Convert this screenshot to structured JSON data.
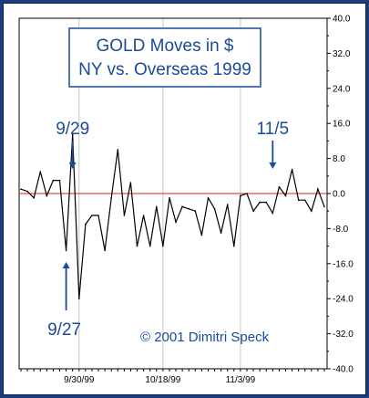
{
  "colors": {
    "frame": "#1c3d7a",
    "series": "#000000",
    "zero_line": "#e21b1b",
    "grid": "#c8c8c8",
    "annotation": "#1a4a9a"
  },
  "chart_data": {
    "type": "line",
    "title_lines": [
      "GOLD Moves in $",
      "NY vs. Overseas 1999"
    ],
    "xlabel": "",
    "ylabel": "",
    "ylim": [
      -40,
      40
    ],
    "y_ticks": [
      40,
      32,
      24,
      16,
      8,
      0,
      -8,
      -16,
      -24,
      -32,
      -40
    ],
    "y_tick_labels": [
      "40.0",
      "32.0",
      "24.0",
      "16.0",
      "8.0",
      "0.0",
      "-8.0",
      "-16.0",
      "-24.0",
      "-32.0",
      "-40.0"
    ],
    "grid": "vertical",
    "x_tick_labels": [
      {
        "label": "9/30/99",
        "index": 9
      },
      {
        "label": "10/18/99",
        "index": 22
      },
      {
        "label": "11/3/99",
        "index": 34
      }
    ],
    "series": [
      {
        "values": [
          1,
          0.5,
          -1,
          5,
          -0.5,
          3,
          3,
          -13,
          13.5,
          -24,
          -7,
          -5,
          -5,
          -13,
          -1,
          10,
          -5,
          2.5,
          -12,
          -5,
          -12,
          -3,
          -12,
          -1,
          -6.5,
          -3,
          -3.5,
          -4,
          -9.5,
          -1,
          -3.5,
          -9,
          -2.5,
          -12,
          -0.5,
          0,
          -4,
          -2,
          -2,
          -4.5,
          1.5,
          -0.5,
          5.5,
          -1.5,
          -1.5,
          -4,
          1,
          -3
        ]
      }
    ],
    "annotations": [
      {
        "label": "9/29",
        "index": 8,
        "direction": "down"
      },
      {
        "label": "11/5",
        "index": 39,
        "direction": "down"
      },
      {
        "label": "9/27",
        "index": 7,
        "direction": "up"
      }
    ],
    "copyright": "© 2001 Dimitri Speck"
  }
}
